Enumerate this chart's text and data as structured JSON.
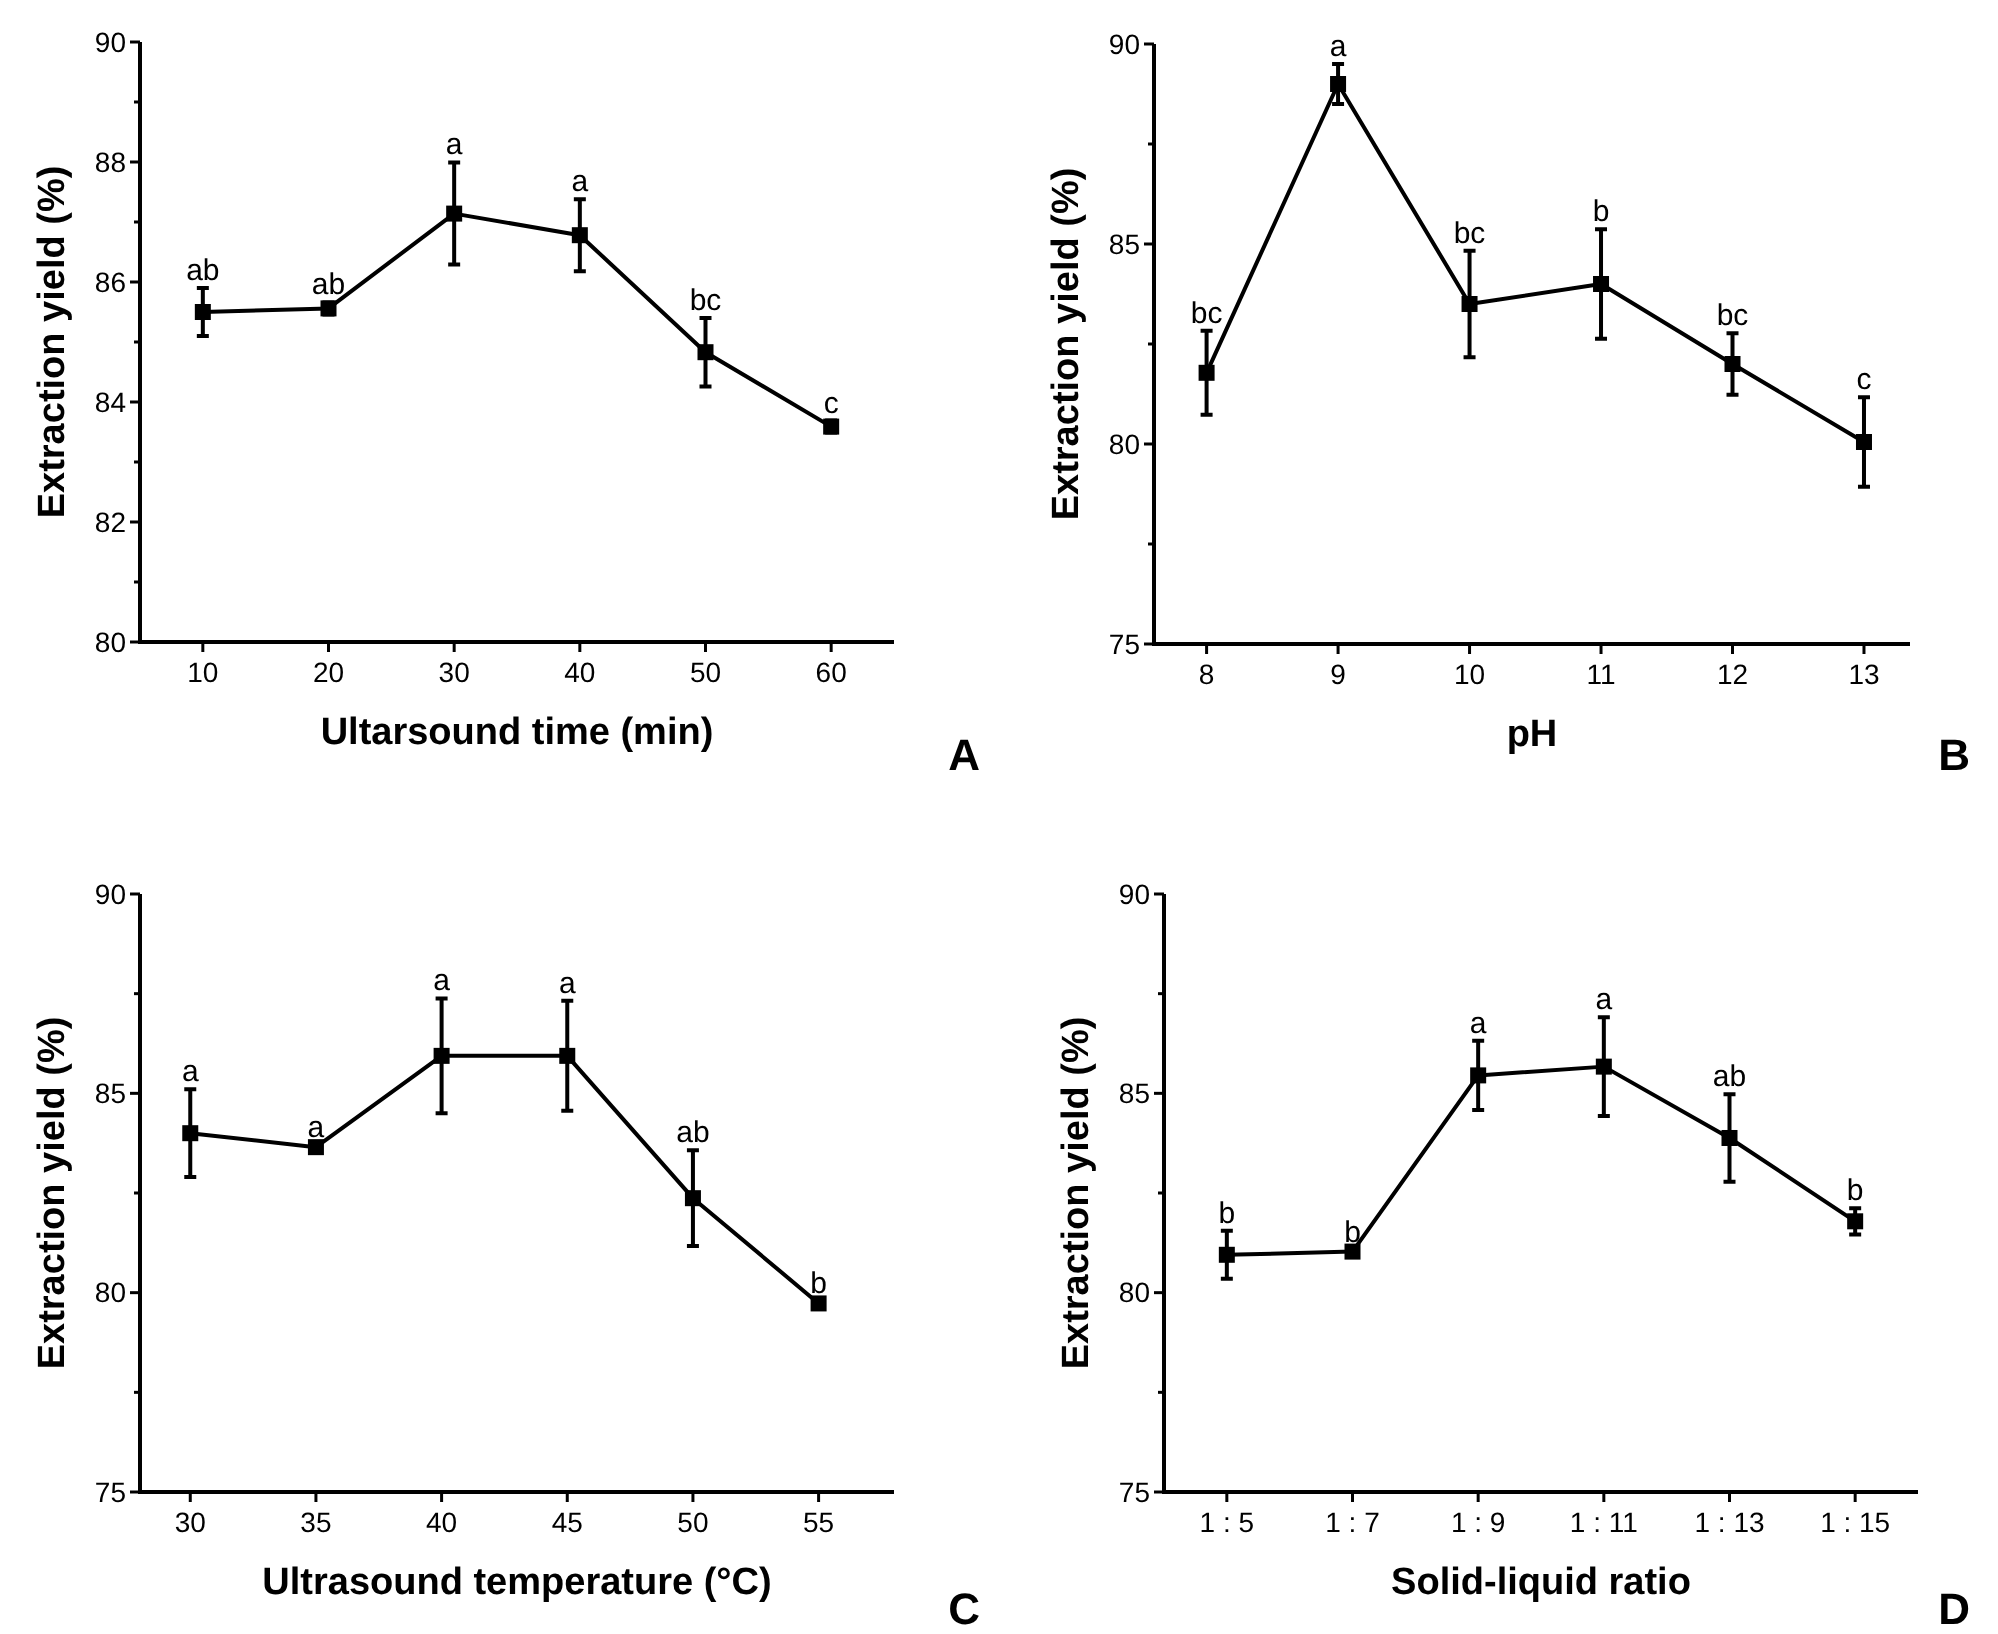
{
  "chart_data": [
    {
      "type": "line",
      "xlabel": "Ultarsound time (min)",
      "ylabel": "Extraction yield (%)",
      "x": [
        10,
        20,
        30,
        40,
        50,
        60
      ],
      "xlim": [
        5,
        65
      ],
      "xticks": [
        10,
        20,
        30,
        40,
        50,
        60
      ],
      "ylim": [
        80,
        90
      ],
      "yticks": [
        80,
        {
          "value": 81,
          "label": null
        },
        82,
        {
          "value": 83,
          "label": null
        },
        84,
        {
          "value": 85,
          "label": null
        },
        86,
        {
          "value": 87,
          "label": null
        },
        88,
        {
          "value": 89,
          "label": null
        },
        90
      ],
      "marker": "square",
      "line_style": "solid",
      "series": [
        {
          "color": "#000000",
          "values": [
            85.5,
            85.56,
            87.14,
            86.78,
            84.83,
            83.59
          ],
          "errors": [
            0.4,
            0.1,
            0.85,
            0.6,
            0.57,
            0.1
          ]
        }
      ],
      "annotations": [
        "A",
        {
          "text": "ab",
          "x": 10,
          "y": 85.9
        },
        {
          "text": "ab",
          "x": 20,
          "y": 85.66
        },
        {
          "text": "a",
          "x": 30,
          "y": 88.0
        },
        {
          "text": "a",
          "x": 40,
          "y": 87.38
        },
        {
          "text": "bc",
          "x": 50,
          "y": 85.4
        },
        {
          "text": "c",
          "x": 60,
          "y": 83.69
        }
      ]
    },
    {
      "type": "line",
      "xlabel": "pH",
      "ylabel": "Extraction yield (%)",
      "x": [
        8,
        9,
        10,
        11,
        12,
        13
      ],
      "xlim": [
        7.6,
        13.35
      ],
      "xticks": [
        8,
        9,
        10,
        11,
        12,
        13
      ],
      "ylim": [
        75,
        90
      ],
      "yticks": [
        75,
        {
          "value": 77.5,
          "label": null
        },
        80,
        {
          "value": 82.5,
          "label": null
        },
        85,
        {
          "value": 87.5,
          "label": null
        },
        90
      ],
      "marker": "square",
      "line_style": "solid",
      "series": [
        {
          "color": "#000000",
          "values": [
            81.78,
            89.0,
            83.5,
            84.0,
            82.0,
            80.05
          ],
          "errors": [
            1.05,
            0.5,
            1.33,
            1.37,
            0.77,
            1.12
          ]
        }
      ],
      "annotations": [
        "B",
        {
          "text": "bc",
          "x": 8,
          "y": 82.83
        },
        {
          "text": "a",
          "x": 9,
          "y": 89.5
        },
        {
          "text": "bc",
          "x": 10,
          "y": 84.83
        },
        {
          "text": "b",
          "x": 11,
          "y": 85.37
        },
        {
          "text": "bc",
          "x": 12,
          "y": 82.77
        },
        {
          "text": "c",
          "x": 13,
          "y": 81.17
        }
      ]
    },
    {
      "type": "line",
      "xlabel": "Ultrasound temperature (°C)",
      "ylabel": "Extraction yield (%)",
      "x": [
        30,
        35,
        40,
        45,
        50,
        55
      ],
      "xlim": [
        28,
        58
      ],
      "xticks": [
        30,
        35,
        40,
        45,
        50,
        55
      ],
      "ylim": [
        75,
        90
      ],
      "yticks": [
        75,
        {
          "value": 77.5,
          "label": null
        },
        80,
        {
          "value": 82.5,
          "label": null
        },
        85,
        {
          "value": 87.5,
          "label": null
        },
        90
      ],
      "marker": "square",
      "line_style": "solid",
      "series": [
        {
          "color": "#000000",
          "values": [
            84.0,
            83.65,
            85.94,
            85.94,
            82.37,
            79.73
          ],
          "errors": [
            1.1,
            0.05,
            1.44,
            1.38,
            1.2,
            0.05
          ]
        }
      ],
      "annotations": [
        "C",
        {
          "text": "a",
          "x": 30,
          "y": 85.1
        },
        {
          "text": "a",
          "x": 35,
          "y": 83.7
        },
        {
          "text": "a",
          "x": 40,
          "y": 87.38
        },
        {
          "text": "a",
          "x": 45,
          "y": 87.32
        },
        {
          "text": "ab",
          "x": 50,
          "y": 83.57
        },
        {
          "text": "b",
          "x": 55,
          "y": 79.78
        }
      ]
    },
    {
      "type": "line",
      "xlabel": "Solid-liquid ratio",
      "ylabel": "Extraction yield (%)",
      "categories": [
        "1 : 5",
        "1 : 7",
        "1 : 9",
        "1 : 11",
        "1 : 13",
        "1 : 15"
      ],
      "ylim": [
        75,
        90
      ],
      "yticks": [
        75,
        {
          "value": 77.5,
          "label": null
        },
        80,
        {
          "value": 82.5,
          "label": null
        },
        85,
        {
          "value": 87.5,
          "label": null
        },
        90
      ],
      "marker": "square",
      "line_style": "solid",
      "series": [
        {
          "color": "#000000",
          "values": [
            80.95,
            81.03,
            85.45,
            85.67,
            83.88,
            81.79
          ],
          "errors": [
            0.6,
            0.05,
            0.87,
            1.24,
            1.1,
            0.33
          ]
        }
      ],
      "annotations": [
        "D",
        {
          "text": "b",
          "x": "1 : 5",
          "y": 81.55
        },
        {
          "text": "b",
          "x": "1 : 7",
          "y": 81.08
        },
        {
          "text": "a",
          "x": "1 : 9",
          "y": 86.32
        },
        {
          "text": "a",
          "x": "1 : 11",
          "y": 86.91
        },
        {
          "text": "ab",
          "x": "1 : 13",
          "y": 84.98
        },
        {
          "text": "b",
          "x": "1 : 15",
          "y": 82.12
        }
      ]
    }
  ]
}
